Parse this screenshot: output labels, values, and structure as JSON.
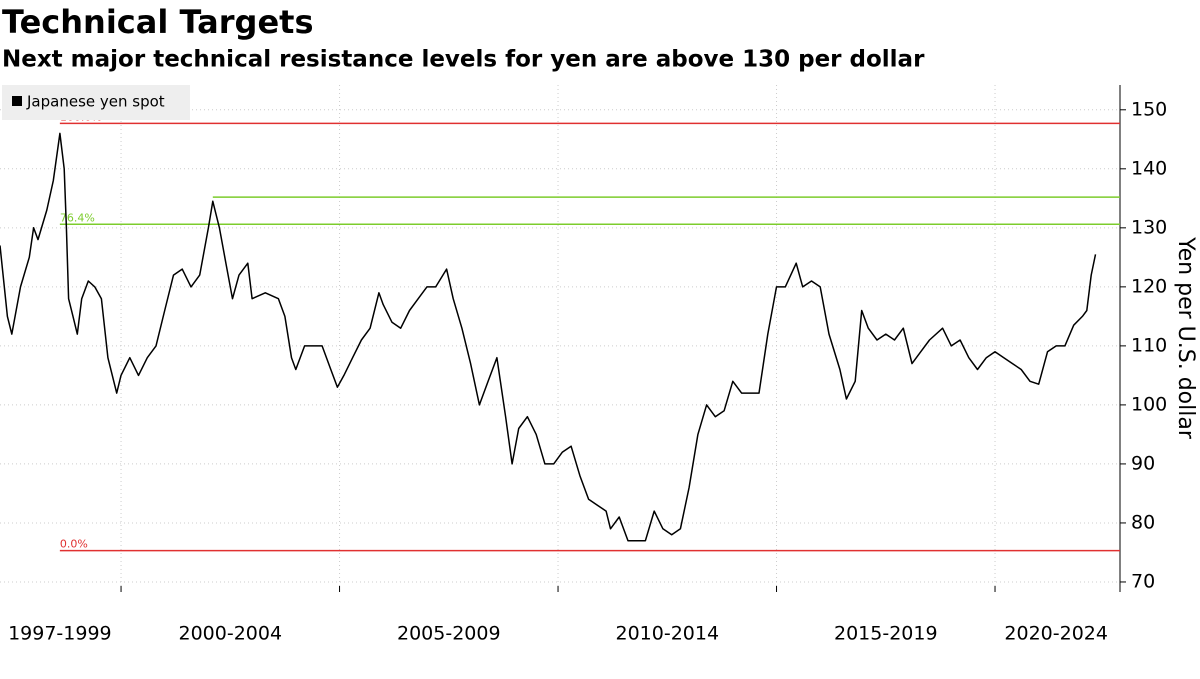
{
  "chart_data": {
    "type": "line",
    "title": "Technical Targets",
    "subtitle": "Next major technical resistance levels for yen are above 130 per dollar",
    "y_axis_label": "Yen per U.S. dollar",
    "x": [
      1997.23,
      1997.4,
      1997.5,
      1997.7,
      1997.9,
      1998.0,
      1998.1,
      1998.3,
      1998.45,
      1998.6,
      1998.7,
      1998.75,
      1998.8,
      1998.9,
      1999.0,
      1999.1,
      1999.25,
      1999.4,
      1999.55,
      1999.7,
      1999.9,
      2000.0,
      2000.2,
      2000.4,
      2000.6,
      2000.8,
      2001.0,
      2001.2,
      2001.4,
      2001.6,
      2001.8,
      2002.0,
      2002.1,
      2002.25,
      2002.4,
      2002.55,
      2002.7,
      2002.9,
      2003.0,
      2003.3,
      2003.6,
      2003.75,
      2003.9,
      2004.0,
      2004.2,
      2004.4,
      2004.6,
      2004.8,
      2004.95,
      2005.1,
      2005.3,
      2005.5,
      2005.7,
      2005.9,
      2006.0,
      2006.2,
      2006.4,
      2006.6,
      2006.8,
      2007.0,
      2007.2,
      2007.45,
      2007.6,
      2007.8,
      2008.0,
      2008.2,
      2008.4,
      2008.6,
      2008.8,
      2008.95,
      2009.1,
      2009.3,
      2009.5,
      2009.7,
      2009.9,
      2010.1,
      2010.3,
      2010.5,
      2010.7,
      2010.9,
      2011.1,
      2011.2,
      2011.4,
      2011.6,
      2011.8,
      2012.0,
      2012.2,
      2012.4,
      2012.6,
      2012.8,
      2013.0,
      2013.2,
      2013.4,
      2013.6,
      2013.8,
      2014.0,
      2014.2,
      2014.4,
      2014.6,
      2014.8,
      2015.0,
      2015.2,
      2015.45,
      2015.6,
      2015.8,
      2016.0,
      2016.2,
      2016.45,
      2016.6,
      2016.8,
      2016.95,
      2017.1,
      2017.3,
      2017.5,
      2017.7,
      2017.9,
      2018.1,
      2018.3,
      2018.5,
      2018.8,
      2019.0,
      2019.2,
      2019.4,
      2019.6,
      2019.8,
      2020.0,
      2020.2,
      2020.4,
      2020.6,
      2020.8,
      2021.0,
      2021.2,
      2021.4,
      2021.6,
      2021.8,
      2022.0,
      2022.1,
      2022.2,
      2022.3
    ],
    "series": [
      {
        "name": "Japanese yen spot",
        "color": "#000000",
        "values": [
          127,
          115,
          112,
          120,
          125,
          130,
          128,
          133,
          138,
          146,
          140,
          130,
          118,
          115,
          112,
          118,
          121,
          120,
          118,
          108,
          102,
          105,
          108,
          105,
          108,
          110,
          116,
          122,
          123,
          120,
          122,
          130,
          134.5,
          130,
          124,
          118,
          122,
          124,
          118,
          119,
          118,
          115,
          108,
          106,
          110,
          110,
          110,
          106,
          103,
          105,
          108,
          111,
          113,
          119,
          117,
          114,
          113,
          116,
          118,
          120,
          120,
          123,
          118,
          113,
          107,
          100,
          104,
          108,
          98,
          90,
          96,
          98,
          95,
          90,
          90,
          92,
          93,
          88,
          84,
          83,
          82,
          79,
          81,
          77,
          77,
          77,
          82,
          79,
          78,
          79,
          86,
          95,
          100,
          98,
          99,
          104,
          102,
          102,
          102,
          112,
          120,
          120,
          124,
          120,
          121,
          120,
          112,
          106,
          101,
          104,
          116,
          113,
          111,
          112,
          111,
          113,
          107,
          109,
          111,
          113,
          110,
          111,
          108,
          106,
          108,
          109,
          108,
          107,
          106,
          104,
          103.5,
          109,
          110,
          110,
          113.5,
          115,
          116,
          122,
          125.5
        ]
      }
    ],
    "xlim": [
      1997.23,
      2022.86
    ],
    "xticks": [
      {
        "value": 1998.6,
        "label": "1997-1999"
      },
      {
        "value": 2002.5,
        "label": "2000-2004"
      },
      {
        "value": 2007.5,
        "label": "2005-2009"
      },
      {
        "value": 2012.5,
        "label": "2010-2014"
      },
      {
        "value": 2017.5,
        "label": "2015-2019"
      },
      {
        "value": 2021.4,
        "label": "2020-2024"
      }
    ],
    "period_bounds": [
      2000,
      2005,
      2010,
      2015,
      2020
    ],
    "ylim": [
      68.3,
      154.2
    ],
    "yticks": [
      70,
      80,
      90,
      100,
      110,
      120,
      130,
      140,
      150
    ],
    "grid": true,
    "levels": [
      {
        "label": "100.0%",
        "value": 147.7,
        "color": "#e03030",
        "start": 1998.6
      },
      {
        "label": "76.4%",
        "value": 130.6,
        "color": "#7ccc2c",
        "start": 1998.6
      },
      {
        "value": 135.2,
        "color": "#7ccc2c",
        "start": 2002.1
      },
      {
        "label": "0.0%",
        "value": 75.3,
        "color": "#e03030",
        "start": 1998.6
      }
    ]
  }
}
